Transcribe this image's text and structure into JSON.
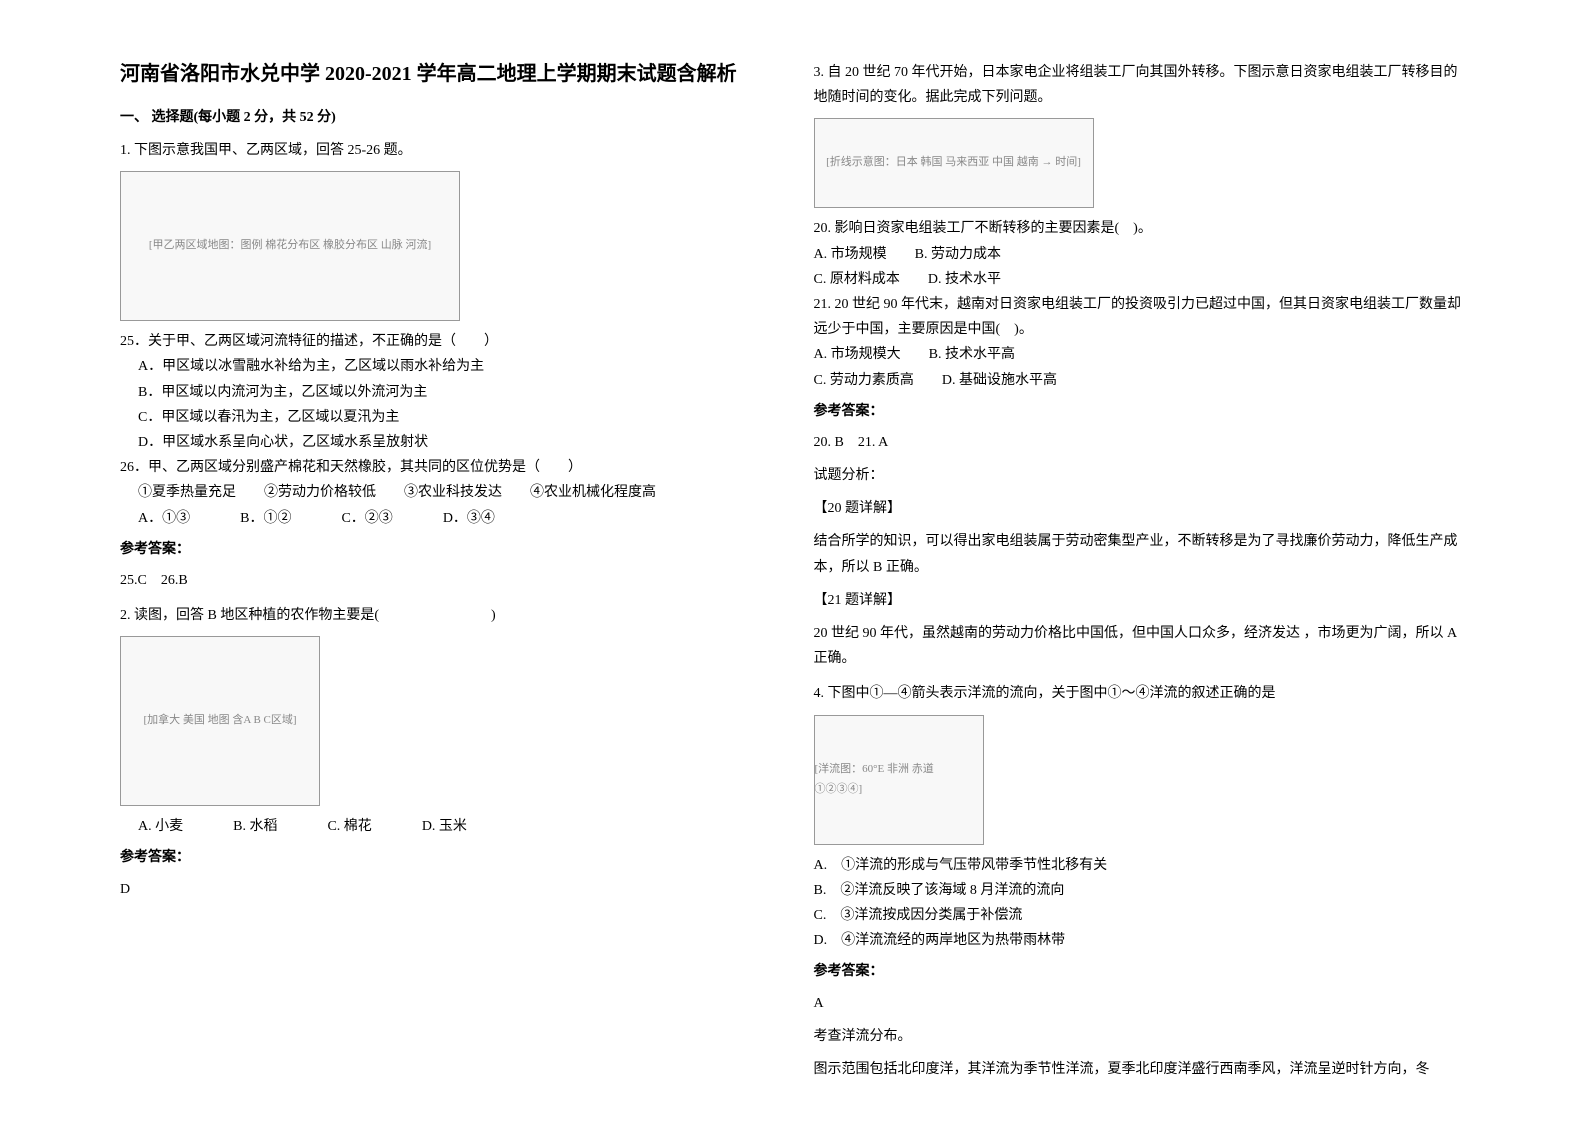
{
  "header": {
    "title": "河南省洛阳市水兑中学 2020-2021 学年高二地理上学期期末试题含解析"
  },
  "section1": {
    "heading": "一、 选择题(每小题 2 分，共 52 分)"
  },
  "q1": {
    "stem": "1. 下图示意我国甲、乙两区域，回答 25-26 题。",
    "img_alt": "[甲乙两区域地图：图例 棉花分布区 橡胶分布区 山脉 河流]",
    "sub25": "25．关于甲、乙两区域河流特征的描述，不正确的是（　　）",
    "a": "A．甲区域以冰雪融水补给为主，乙区域以雨水补给为主",
    "b": "B．甲区域以内流河为主，乙区域以外流河为主",
    "c": "C．甲区域以春汛为主，乙区域以夏汛为主",
    "d": "D．甲区域水系呈向心状，乙区域水系呈放射状",
    "sub26": "26．甲、乙两区域分别盛产棉花和天然橡胶，其共同的区位优势是（　　）",
    "opts26": "①夏季热量充足　　②劳动力价格较低　　③农业科技发达　　④农业机械化程度高",
    "a26": "A．①③",
    "b26": "B．①②",
    "c26": "C．②③",
    "d26": "D．③④",
    "ans_label": "参考答案：",
    "ans": "25.C　26.B"
  },
  "q2": {
    "stem": "2. 读图，回答 B 地区种植的农作物主要是(　　　　　　　　)",
    "img_alt": "[加拿大 美国 地图 含A B C区域]",
    "a": "A. 小麦",
    "b": "B. 水稻",
    "c": "C. 棉花",
    "d": "D. 玉米",
    "ans_label": "参考答案：",
    "ans": "D"
  },
  "q3": {
    "stem": "3. 自 20 世纪 70 年代开始，日本家电企业将组装工厂向其国外转移。下图示意日资家电组装工厂转移目的地随时间的变化。据此完成下列问题。",
    "img_alt": "[折线示意图：日本 韩国 马来西亚 中国 越南 → 时间]",
    "sub20": "20. 影响日资家电组装工厂不断转移的主要因素是(　)。",
    "a20": "A. 市场规模　　B. 劳动力成本",
    "c20": "C. 原材料成本　　D. 技术水平",
    "sub21": "21. 20 世纪 90 年代末，越南对日资家电组装工厂的投资吸引力已超过中国，但其日资家电组装工厂数量却远少于中国，主要原因是中国(　)。",
    "a21": "A. 市场规模大　　B. 技术水平高",
    "c21": "C. 劳动力素质高　　D. 基础设施水平高",
    "ans_label": "参考答案：",
    "ans1": "20. B　21. A",
    "analysis_label": "试题分析：",
    "detail20_label": "【20 题详解】",
    "detail20": "结合所学的知识，可以得出家电组装属于劳动密集型产业，不断转移是为了寻找廉价劳动力，降低生产成本，所以 B 正确。",
    "detail21_label": "【21 题详解】",
    "detail21": "20 世纪 90 年代，虽然越南的劳动力价格比中国低，但中国人口众多，经济发达 ，市场更为广阔，所以 A 正确。"
  },
  "q4": {
    "stem": "4. 下图中①—④箭头表示洋流的流向，关于图中①～④洋流的叙述正确的是",
    "img_alt": "[洋流图：60°E 非洲 赤道 ①②③④]",
    "a": "A.　①洋流的形成与气压带风带季节性北移有关",
    "b": "B.　②洋流反映了该海域 8 月洋流的流向",
    "c": "C.　③洋流按成因分类属于补偿流",
    "d": "D.　④洋流流经的两岸地区为热带雨林带",
    "ans_label": "参考答案：",
    "ans": "A",
    "analysis1": "考查洋流分布。",
    "analysis2": "图示范围包括北印度洋，其洋流为季节性洋流，夏季北印度洋盛行西南季风，洋流呈逆时针方向，冬"
  }
}
